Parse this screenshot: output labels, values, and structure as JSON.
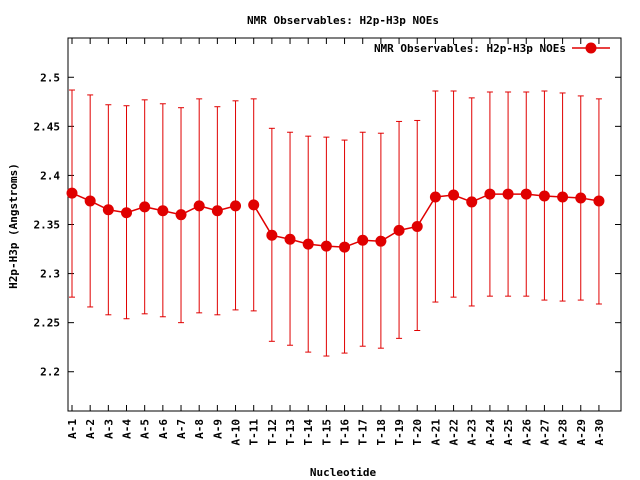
{
  "chart_data": {
    "type": "line",
    "title": "NMR Observables: H2p-H3p NOEs",
    "xlabel": "Nucleotide",
    "ylabel": "H2p-H3p (Angstroms)",
    "ylim": [
      2.16,
      2.54
    ],
    "yticks": [
      2.2,
      2.25,
      2.3,
      2.35,
      2.4,
      2.45,
      2.5
    ],
    "ytick_labels": [
      "2.2",
      "2.25",
      "2.3",
      "2.35",
      "2.4",
      "2.45",
      "2.5"
    ],
    "grid": false,
    "legend_position": "top-right",
    "color": "#e00000",
    "categories": [
      "A-1",
      "A-2",
      "A-3",
      "A-4",
      "A-5",
      "A-6",
      "A-7",
      "A-8",
      "A-9",
      "A-10",
      "T-11",
      "T-12",
      "T-13",
      "T-14",
      "T-15",
      "T-16",
      "T-17",
      "T-18",
      "T-19",
      "T-20",
      "A-21",
      "A-22",
      "A-23",
      "A-24",
      "A-25",
      "A-26",
      "A-27",
      "A-28",
      "A-29",
      "A-30"
    ],
    "series": [
      {
        "name": "NMR Observables: H2p-H3p NOEs",
        "values": [
          2.382,
          2.374,
          2.365,
          2.362,
          2.368,
          2.364,
          2.36,
          2.369,
          2.364,
          2.369,
          2.37,
          2.339,
          2.335,
          2.33,
          2.328,
          2.327,
          2.334,
          2.333,
          2.344,
          2.348,
          2.378,
          2.38,
          2.373,
          2.381,
          2.381,
          2.381,
          2.379,
          2.378,
          2.377,
          2.374
        ],
        "err_low": [
          2.276,
          2.266,
          2.258,
          2.254,
          2.259,
          2.256,
          2.25,
          2.26,
          2.258,
          2.263,
          2.262,
          2.231,
          2.227,
          2.22,
          2.216,
          2.219,
          2.226,
          2.224,
          2.234,
          2.242,
          2.271,
          2.276,
          2.267,
          2.277,
          2.277,
          2.277,
          2.273,
          2.272,
          2.273,
          2.269
        ],
        "err_high": [
          2.487,
          2.482,
          2.472,
          2.471,
          2.477,
          2.473,
          2.469,
          2.478,
          2.47,
          2.476,
          2.478,
          2.448,
          2.444,
          2.44,
          2.439,
          2.436,
          2.444,
          2.443,
          2.455,
          2.456,
          2.486,
          2.486,
          2.479,
          2.485,
          2.485,
          2.485,
          2.486,
          2.484,
          2.481,
          2.478
        ],
        "segments": [
          [
            0,
            9
          ],
          [
            10,
            29
          ]
        ]
      }
    ]
  }
}
